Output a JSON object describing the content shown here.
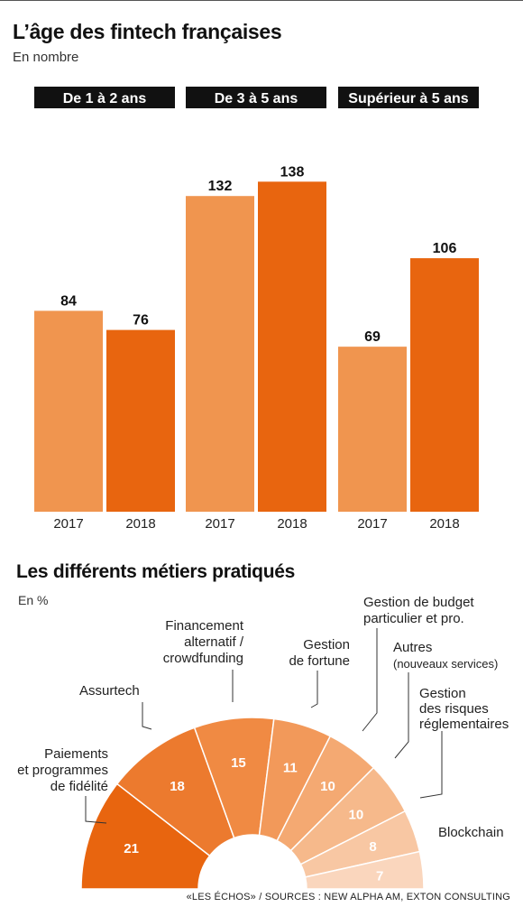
{
  "chart_data": [
    {
      "type": "bar",
      "title": "L’âge des fintech françaises",
      "subtitle": "En nombre",
      "groups": [
        "De 1 à 2 ans",
        "De 3 à 5 ans",
        "Supérieur à 5 ans"
      ],
      "series": [
        {
          "name": "2017",
          "values": [
            84,
            132,
            69
          ],
          "color": "#f0954f"
        },
        {
          "name": "2018",
          "values": [
            76,
            138,
            106
          ],
          "color": "#e8650f"
        }
      ],
      "ylim": [
        0,
        180
      ]
    },
    {
      "type": "pie",
      "variant": "half-donut",
      "title": "Les différents métiers pratiqués",
      "subtitle": "En %",
      "slices": [
        {
          "label": "Paiements et programmes de fidélité",
          "label_lines": [
            "Paiements",
            "et programmes",
            "de fidélité"
          ],
          "value": 21,
          "color": "#e8650f"
        },
        {
          "label": "Assurtech",
          "label_lines": [
            "Assurtech"
          ],
          "value": 18,
          "color": "#ec7a2e"
        },
        {
          "label": "Financement alternatif / crowdfunding",
          "label_lines": [
            "Financement",
            "alternatif /",
            "crowdfunding"
          ],
          "value": 15,
          "color": "#f08a43"
        },
        {
          "label": "Gestion de fortune",
          "label_lines": [
            "Gestion",
            "de fortune"
          ],
          "value": 11,
          "color": "#f2995a"
        },
        {
          "label": "Gestion de budget particulier et pro.",
          "label_lines": [
            "Gestion de budget",
            "particulier et pro."
          ],
          "value": 10,
          "color": "#f4a972"
        },
        {
          "label": "Autres (nouveaux services)",
          "label_lines": [
            "Autres",
            "(nouveaux services)"
          ],
          "value": 10,
          "color": "#f6b98b"
        },
        {
          "label": "Gestion des risques réglementaires",
          "label_lines": [
            "Gestion",
            "des risques",
            "réglementaires"
          ],
          "value": 8,
          "color": "#f8c7a3"
        },
        {
          "label": "Blockchain",
          "label_lines": [
            "Blockchain"
          ],
          "value": 7,
          "color": "#fad6bd"
        }
      ]
    }
  ],
  "source": "«LES ÉCHOS» / SOURCES : NEW ALPHA AM, EXTON CONSULTING"
}
